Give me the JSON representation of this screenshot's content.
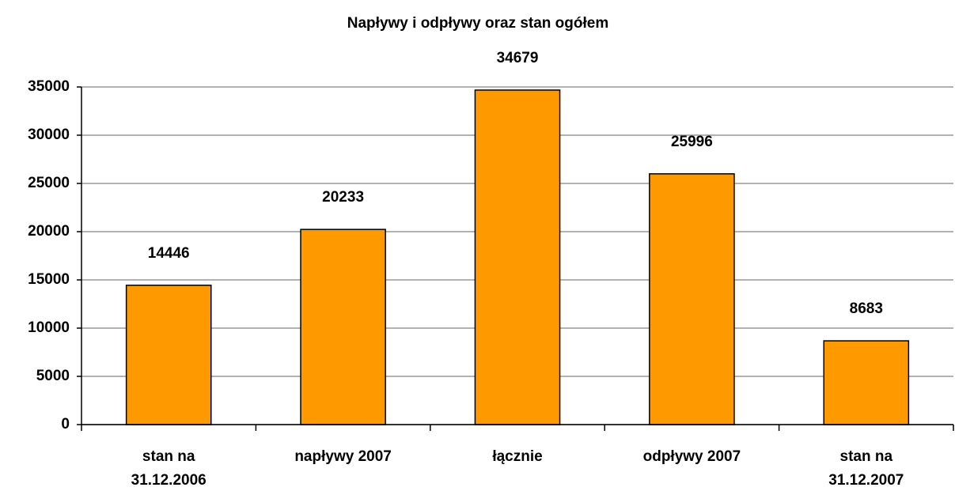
{
  "chart_data": {
    "type": "bar",
    "title": "Napływy i odpływy oraz stan ogółem",
    "categories": [
      "stan na 31.12.2006",
      "napływy 2007",
      "łącznie",
      "odpływy 2007",
      "stan na 31.12.2007"
    ],
    "values": [
      14446,
      20233,
      34679,
      25996,
      8683
    ],
    "color": "#ff9900",
    "ylim": [
      0,
      35000
    ],
    "yticks": [
      0,
      5000,
      10000,
      15000,
      20000,
      25000,
      30000,
      35000
    ],
    "grid": true
  }
}
